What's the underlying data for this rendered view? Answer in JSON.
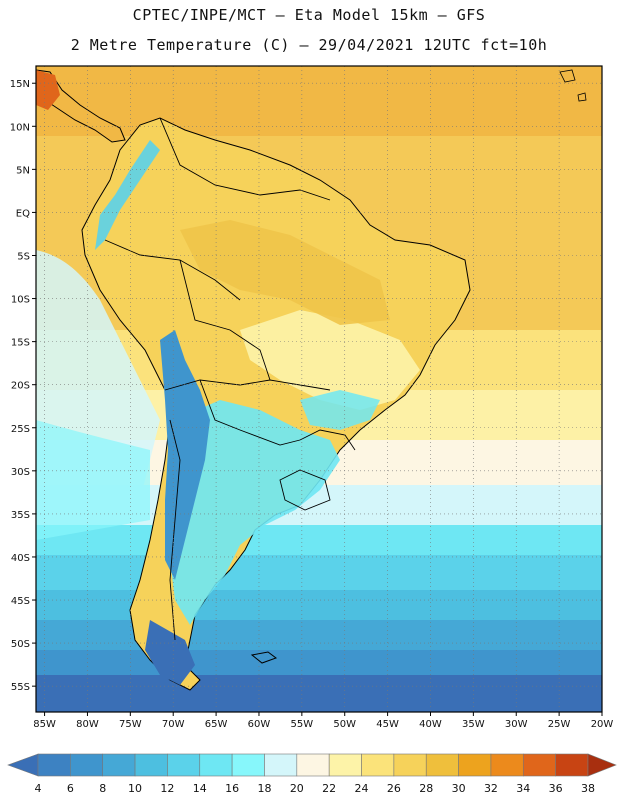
{
  "header": {
    "line1": "CPTEC/INPE/MCT –  Eta Model 15km – GFS",
    "line2": "2 Metre Temperature (C) – 29/04/2021 12UTC fct=10h"
  },
  "axes": {
    "lat_labels": [
      "15N",
      "10N",
      "5N",
      "EQ",
      "5S",
      "10S",
      "15S",
      "20S",
      "25S",
      "30S",
      "35S",
      "40S",
      "45S",
      "50S",
      "55S"
    ],
    "lon_labels": [
      "85W",
      "80W",
      "75W",
      "70W",
      "65W",
      "60W",
      "55W",
      "50W",
      "45W",
      "40W",
      "35W",
      "30W",
      "25W",
      "20W"
    ]
  },
  "colorbar": {
    "labels": [
      "4",
      "6",
      "8",
      "10",
      "12",
      "14",
      "16",
      "18",
      "20",
      "22",
      "24",
      "26",
      "28",
      "30",
      "32",
      "34",
      "36",
      "38"
    ],
    "colors": [
      "#3a6fb6",
      "#3d82c2",
      "#3f95cd",
      "#45a8d6",
      "#4dbfe0",
      "#5bd2ea",
      "#6ee7f3",
      "#87f7fb",
      "#d4f6fa",
      "#fdf6e3",
      "#fdf3a8",
      "#fbe37a",
      "#f6d25a",
      "#efbf3c",
      "#eda31e",
      "#ec8a1c",
      "#e0661b",
      "#c84413",
      "#a82f0f"
    ]
  },
  "chart_data": {
    "type": "heatmap",
    "title": "2 Metre Temperature (C) – 29/04/2021 12UTC fct=10h",
    "model": "CPTEC/INPE/MCT Eta Model 15km – GFS",
    "variable": "2 Metre Temperature",
    "units": "C",
    "date": "29/04/2021",
    "cycle": "12UTC",
    "forecast_hour": "10h",
    "domain": {
      "lon_range": [
        -86,
        -20
      ],
      "lat_range": [
        -58,
        17
      ]
    },
    "levels": [
      4,
      6,
      8,
      10,
      12,
      14,
      16,
      18,
      20,
      22,
      24,
      26,
      28,
      30,
      32,
      34,
      36,
      38
    ]
  }
}
